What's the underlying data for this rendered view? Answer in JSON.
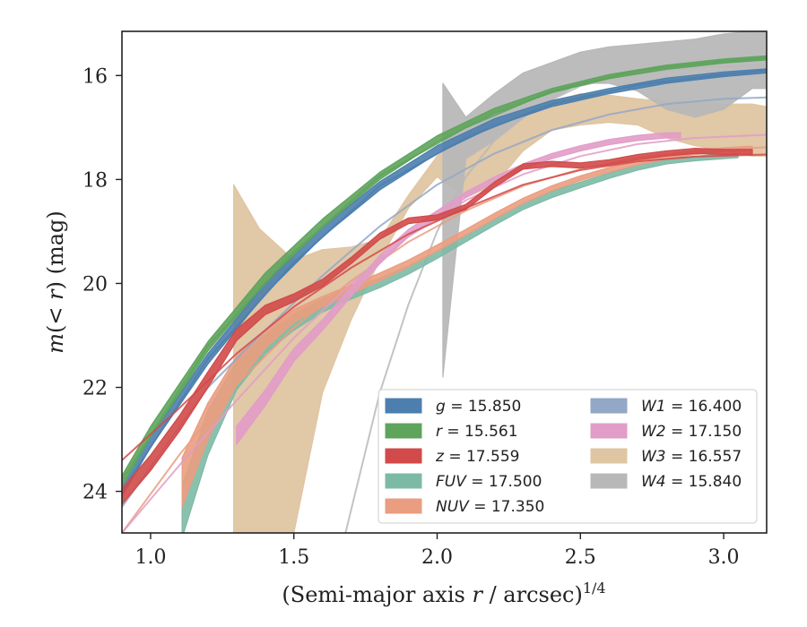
{
  "chart_data": {
    "type": "line",
    "title": "",
    "xlabel": "(Semi-major axis r / arcsec)",
    "xlabel_base": "(Semi-major axis ",
    "xlabel_var": "r",
    "xlabel_rest": " / arcsec)",
    "xlabel_sup": "1/4",
    "ylabel": "m(< r) (mag)",
    "ylabel_pre": "m",
    "ylabel_paren": "(< ",
    "ylabel_var": "r",
    "ylabel_close": ")",
    "ylabel_unit": " (mag)",
    "xlim": [
      0.9,
      3.15
    ],
    "ylim": [
      24.8,
      15.15
    ],
    "y_inverted": true,
    "grid": false,
    "legend_position": "lower-right",
    "xticks": [
      1.0,
      1.5,
      2.0,
      2.5,
      3.0
    ],
    "xtick_labels": [
      "1.0",
      "1.5",
      "2.0",
      "2.5",
      "3.0"
    ],
    "yticks": [
      16,
      18,
      20,
      22,
      24
    ],
    "ytick_labels": [
      "16",
      "18",
      "20",
      "22",
      "24"
    ],
    "series": [
      {
        "name": "g",
        "legend_value": "15.850",
        "color": "#4c7fae",
        "kind": "band",
        "data": [
          [
            0.9,
            24.1,
            23.9
          ],
          [
            1.0,
            23.15,
            22.95
          ],
          [
            1.2,
            21.55,
            21.35
          ],
          [
            1.4,
            20.2,
            20.0
          ],
          [
            1.6,
            19.1,
            18.92
          ],
          [
            1.8,
            18.2,
            18.04
          ],
          [
            2.0,
            17.5,
            17.35
          ],
          [
            2.2,
            16.97,
            16.83
          ],
          [
            2.4,
            16.6,
            16.48
          ],
          [
            2.6,
            16.35,
            16.25
          ],
          [
            2.8,
            16.15,
            16.05
          ],
          [
            3.0,
            16.02,
            15.93
          ],
          [
            3.15,
            15.95,
            15.87
          ]
        ],
        "fit": [
          [
            0.9,
            24.0
          ],
          [
            1.2,
            21.45
          ],
          [
            1.5,
            19.6
          ],
          [
            1.8,
            18.12
          ],
          [
            2.1,
            17.2
          ],
          [
            2.4,
            16.55
          ],
          [
            2.7,
            16.18
          ],
          [
            3.0,
            15.98
          ],
          [
            3.15,
            15.9
          ]
        ]
      },
      {
        "name": "r",
        "legend_value": "15.561",
        "color": "#5ea45c",
        "kind": "band",
        "data": [
          [
            0.9,
            23.9,
            23.7
          ],
          [
            1.0,
            22.95,
            22.75
          ],
          [
            1.2,
            21.3,
            21.12
          ],
          [
            1.4,
            19.98,
            19.8
          ],
          [
            1.6,
            18.92,
            18.76
          ],
          [
            1.8,
            18.0,
            17.86
          ],
          [
            2.0,
            17.28,
            17.16
          ],
          [
            2.2,
            16.73,
            16.63
          ],
          [
            2.4,
            16.33,
            16.25
          ],
          [
            2.6,
            16.06,
            15.98
          ],
          [
            2.8,
            15.88,
            15.8
          ],
          [
            3.0,
            15.76,
            15.68
          ],
          [
            3.15,
            15.7,
            15.62
          ]
        ],
        "fit": [
          [
            0.9,
            23.8
          ],
          [
            1.2,
            21.2
          ],
          [
            1.5,
            19.4
          ],
          [
            1.8,
            17.93
          ],
          [
            2.1,
            17.0
          ],
          [
            2.4,
            16.3
          ],
          [
            2.7,
            15.9
          ],
          [
            3.0,
            15.72
          ],
          [
            3.15,
            15.66
          ]
        ]
      },
      {
        "name": "z",
        "legend_value": "17.559",
        "color": "#d24a4a",
        "kind": "band",
        "data": [
          [
            0.9,
            24.25,
            23.95
          ],
          [
            1.0,
            23.6,
            23.3
          ],
          [
            1.1,
            22.85,
            22.55
          ],
          [
            1.2,
            22.0,
            21.7
          ],
          [
            1.3,
            21.1,
            20.88
          ],
          [
            1.4,
            20.6,
            20.42
          ],
          [
            1.5,
            20.35,
            20.2
          ],
          [
            1.6,
            20.05,
            19.92
          ],
          [
            1.7,
            19.62,
            19.5
          ],
          [
            1.8,
            19.15,
            19.03
          ],
          [
            1.9,
            18.85,
            18.74
          ],
          [
            2.0,
            18.78,
            18.68
          ],
          [
            2.1,
            18.58,
            18.48
          ],
          [
            2.2,
            18.15,
            18.05
          ],
          [
            2.3,
            17.8,
            17.7
          ],
          [
            2.4,
            17.75,
            17.65
          ],
          [
            2.5,
            17.78,
            17.68
          ],
          [
            2.6,
            17.72,
            17.62
          ],
          [
            2.7,
            17.62,
            17.52
          ],
          [
            2.8,
            17.55,
            17.45
          ],
          [
            2.9,
            17.5,
            17.4
          ],
          [
            3.0,
            17.52,
            17.42
          ],
          [
            3.1,
            17.52,
            17.42
          ]
        ],
        "fit": [
          [
            0.9,
            23.4
          ],
          [
            1.1,
            22.4
          ],
          [
            1.3,
            21.35
          ],
          [
            1.5,
            20.45
          ],
          [
            1.7,
            19.7
          ],
          [
            1.9,
            19.05
          ],
          [
            2.1,
            18.55
          ],
          [
            2.3,
            18.1
          ],
          [
            2.5,
            17.82
          ],
          [
            2.7,
            17.65
          ],
          [
            2.9,
            17.56
          ],
          [
            3.15,
            17.52
          ]
        ]
      },
      {
        "name": "FUV",
        "legend_value": "17.500",
        "color": "#7dbaa5",
        "kind": "band",
        "data": [
          [
            1.11,
            24.9,
            23.9
          ],
          [
            1.2,
            23.3,
            22.45
          ],
          [
            1.3,
            22.05,
            21.5
          ],
          [
            1.4,
            21.35,
            21.0
          ],
          [
            1.5,
            20.9,
            20.6
          ],
          [
            1.6,
            20.55,
            20.3
          ],
          [
            1.7,
            20.3,
            20.1
          ],
          [
            1.8,
            20.08,
            19.9
          ],
          [
            1.9,
            19.82,
            19.66
          ],
          [
            2.0,
            19.52,
            19.38
          ],
          [
            2.1,
            19.2,
            19.07
          ],
          [
            2.2,
            18.88,
            18.76
          ],
          [
            2.3,
            18.58,
            18.46
          ],
          [
            2.4,
            18.35,
            18.23
          ],
          [
            2.5,
            18.16,
            18.05
          ],
          [
            2.6,
            17.98,
            17.88
          ],
          [
            2.7,
            17.82,
            17.72
          ],
          [
            2.8,
            17.7,
            17.6
          ],
          [
            2.9,
            17.64,
            17.55
          ],
          [
            3.0,
            17.6,
            17.51
          ],
          [
            3.05,
            17.58,
            17.5
          ]
        ]
      },
      {
        "name": "NUV",
        "legend_value": "17.350",
        "color": "#ea9d80",
        "kind": "band",
        "data": [
          [
            1.11,
            24.3,
            23.35
          ],
          [
            1.2,
            23.0,
            22.3
          ],
          [
            1.3,
            21.95,
            21.4
          ],
          [
            1.4,
            21.25,
            20.9
          ],
          [
            1.5,
            20.75,
            20.5
          ],
          [
            1.6,
            20.45,
            20.25
          ],
          [
            1.7,
            20.2,
            20.03
          ],
          [
            1.8,
            19.95,
            19.8
          ],
          [
            1.9,
            19.68,
            19.55
          ],
          [
            2.0,
            19.38,
            19.26
          ],
          [
            2.1,
            19.07,
            18.96
          ],
          [
            2.2,
            18.76,
            18.65
          ],
          [
            2.3,
            18.46,
            18.36
          ],
          [
            2.4,
            18.22,
            18.12
          ],
          [
            2.5,
            18.02,
            17.93
          ],
          [
            2.6,
            17.86,
            17.77
          ],
          [
            2.7,
            17.72,
            17.63
          ],
          [
            2.8,
            17.6,
            17.51
          ],
          [
            2.9,
            17.52,
            17.44
          ],
          [
            3.0,
            17.47,
            17.39
          ],
          [
            3.1,
            17.44,
            17.36
          ]
        ],
        "fit": [
          [
            0.9,
            24.8
          ],
          [
            1.1,
            23.3
          ],
          [
            1.3,
            21.95
          ],
          [
            1.5,
            20.85
          ],
          [
            1.7,
            19.95
          ],
          [
            1.9,
            19.2
          ],
          [
            2.1,
            18.6
          ],
          [
            2.3,
            18.12
          ],
          [
            2.5,
            17.8
          ],
          [
            2.7,
            17.58
          ],
          [
            2.9,
            17.45
          ],
          [
            3.15,
            17.38
          ]
        ]
      },
      {
        "name": "W1",
        "legend_value": "16.400",
        "color": "#93a7c6",
        "kind": "band",
        "data": [],
        "fit": [
          [
            0.9,
            24.3
          ],
          [
            1.2,
            22.0
          ],
          [
            1.4,
            20.9
          ],
          [
            1.6,
            19.85
          ],
          [
            1.8,
            18.9
          ],
          [
            2.0,
            18.1
          ],
          [
            2.2,
            17.5
          ],
          [
            2.4,
            17.05
          ],
          [
            2.6,
            16.75
          ],
          [
            2.8,
            16.55
          ],
          [
            3.0,
            16.45
          ],
          [
            3.15,
            16.42
          ]
        ]
      },
      {
        "name": "W2",
        "legend_value": "17.150",
        "color": "#e29cc8",
        "kind": "band",
        "data": [
          [
            1.3,
            23.1,
            22.75
          ],
          [
            1.4,
            22.35,
            22.05
          ],
          [
            1.5,
            21.5,
            21.25
          ],
          [
            1.6,
            20.9,
            20.7
          ],
          [
            1.7,
            20.25,
            20.07
          ],
          [
            1.8,
            19.62,
            19.46
          ],
          [
            1.9,
            19.1,
            18.96
          ],
          [
            2.0,
            18.72,
            18.6
          ],
          [
            2.1,
            18.35,
            18.24
          ],
          [
            2.2,
            18.05,
            17.95
          ],
          [
            2.3,
            17.8,
            17.7
          ],
          [
            2.4,
            17.6,
            17.5
          ],
          [
            2.5,
            17.45,
            17.35
          ],
          [
            2.6,
            17.33,
            17.23
          ],
          [
            2.7,
            17.25,
            17.15
          ],
          [
            2.8,
            17.2,
            17.1
          ],
          [
            2.85,
            17.2,
            17.1
          ]
        ],
        "fit": [
          [
            0.9,
            24.8
          ],
          [
            1.1,
            23.5
          ],
          [
            1.3,
            22.25
          ],
          [
            1.5,
            21.05
          ],
          [
            1.7,
            20.0
          ],
          [
            1.9,
            19.1
          ],
          [
            2.1,
            18.4
          ],
          [
            2.3,
            17.9
          ],
          [
            2.5,
            17.55
          ],
          [
            2.7,
            17.32
          ],
          [
            2.9,
            17.2
          ],
          [
            3.15,
            17.14
          ]
        ]
      },
      {
        "name": "W3",
        "legend_value": "16.557",
        "color": "#dfc5a2",
        "kind": "band",
        "data": [
          [
            1.29,
            24.8,
            18.1
          ],
          [
            1.38,
            24.8,
            18.95
          ],
          [
            1.5,
            24.8,
            19.55
          ],
          [
            1.6,
            22.1,
            19.35
          ],
          [
            1.7,
            20.7,
            19.3
          ],
          [
            1.8,
            19.55,
            19.15
          ],
          [
            1.9,
            18.55,
            18.3
          ],
          [
            2.0,
            17.95,
            17.55
          ],
          [
            2.1,
            18.35,
            17.15
          ],
          [
            2.2,
            18.1,
            16.95
          ],
          [
            2.3,
            17.45,
            16.75
          ],
          [
            2.4,
            17.05,
            16.5
          ],
          [
            2.5,
            16.95,
            16.35
          ],
          [
            2.6,
            16.9,
            16.38
          ],
          [
            2.7,
            16.95,
            16.45
          ],
          [
            2.8,
            17.2,
            16.5
          ],
          [
            2.9,
            17.35,
            16.5
          ],
          [
            3.0,
            17.45,
            16.55
          ],
          [
            3.1,
            17.55,
            16.55
          ],
          [
            3.15,
            17.55,
            16.6
          ]
        ]
      },
      {
        "name": "W4",
        "legend_value": "15.840",
        "color": "#b8b8b8",
        "kind": "band",
        "data": [
          [
            2.02,
            21.8,
            16.15
          ],
          [
            2.1,
            17.6,
            16.8
          ],
          [
            2.2,
            17.25,
            16.35
          ],
          [
            2.3,
            16.8,
            15.95
          ],
          [
            2.4,
            16.45,
            15.75
          ],
          [
            2.5,
            16.15,
            15.55
          ],
          [
            2.6,
            16.15,
            15.45
          ],
          [
            2.7,
            16.3,
            15.4
          ],
          [
            2.8,
            16.65,
            15.35
          ],
          [
            2.9,
            16.8,
            15.3
          ],
          [
            3.0,
            16.65,
            15.2
          ],
          [
            3.1,
            16.25,
            15.15
          ],
          [
            3.15,
            16.25,
            15.15
          ]
        ],
        "fit": [
          [
            1.68,
            24.8
          ],
          [
            1.8,
            22.1
          ],
          [
            1.9,
            20.4
          ],
          [
            2.0,
            19.0
          ],
          [
            2.1,
            17.95
          ],
          [
            2.2,
            17.25
          ],
          [
            2.35,
            16.6
          ],
          [
            2.5,
            16.2
          ],
          [
            2.7,
            15.95
          ],
          [
            2.9,
            15.85
          ],
          [
            3.15,
            15.8
          ]
        ]
      }
    ]
  }
}
